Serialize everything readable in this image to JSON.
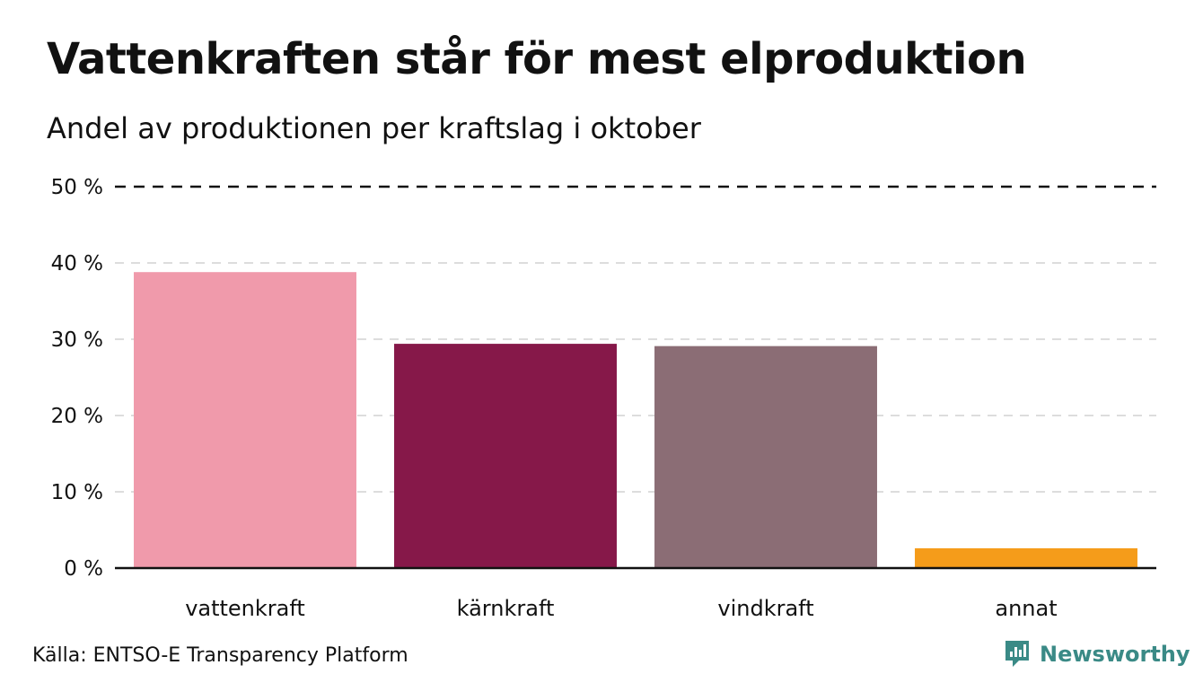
{
  "title": "Vattenkraften står för mest elproduktion",
  "subtitle": "Andel av produktionen per kraftslag i oktober",
  "source": "Källa: ENTSO-E Transparency Platform",
  "brand": {
    "name": "Newsworthy",
    "icon": "newsworthy-logo-icon",
    "color": "#3a8a86"
  },
  "chart_data": {
    "type": "bar",
    "categories": [
      "vattenkraft",
      "kärnkraft",
      "vindkraft",
      "annat"
    ],
    "values": [
      38.8,
      29.4,
      29.1,
      2.6
    ],
    "colors": [
      "#f09aab",
      "#861849",
      "#8b6d75",
      "#f59c1a"
    ],
    "ylim": [
      0,
      50
    ],
    "yticks": [
      0,
      10,
      20,
      30,
      40,
      50
    ],
    "ytick_labels": [
      "0 %",
      "10 %",
      "20 %",
      "30 %",
      "40 %",
      "50 %"
    ],
    "grid": true,
    "reference_line": {
      "value": 50,
      "style": "dashed"
    },
    "xlabel": "",
    "ylabel": ""
  }
}
